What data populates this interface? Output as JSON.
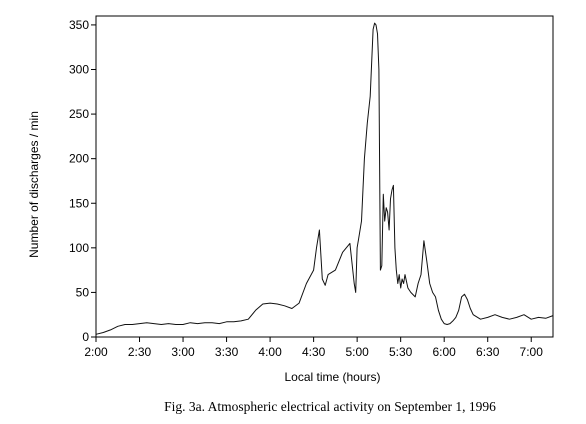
{
  "chart_data": {
    "type": "line",
    "caption": "Fig. 3a. Atmospheric electrical activity on September 1, 1996",
    "xlabel": "Local time (hours)",
    "ylabel": "Number of discharges / min",
    "x_axis": {
      "unit": "local time",
      "start": "2:00",
      "end": "7:15",
      "ticks": [
        "2:00",
        "2:30",
        "3:00",
        "3:30",
        "4:00",
        "4:30",
        "5:00",
        "5:30",
        "6:00",
        "6:30",
        "7:00"
      ]
    },
    "y_axis": {
      "range": [
        0,
        360
      ],
      "ticks": [
        0,
        50,
        100,
        150,
        200,
        250,
        300,
        350
      ]
    },
    "grid": false,
    "legend": "none",
    "line_color": "#111111",
    "series": [
      {
        "x": [
          "2:00",
          "2:05",
          "2:10",
          "2:15",
          "2:20",
          "2:25",
          "2:30",
          "2:35",
          "2:40",
          "2:45",
          "2:50",
          "2:55",
          "3:00",
          "3:05",
          "3:10",
          "3:15",
          "3:20",
          "3:25",
          "3:30",
          "3:35",
          "3:40",
          "3:45",
          "3:50",
          "3:55",
          "4:00",
          "4:05",
          "4:10",
          "4:15",
          "4:20",
          "4:25",
          "4:30",
          "4:32",
          "4:34",
          "4:36",
          "4:38",
          "4:40",
          "4:45",
          "4:50",
          "4:55",
          "4:58",
          "4:59",
          "5:00",
          "5:01",
          "5:03",
          "5:05",
          "5:07",
          "5:09",
          "5:11",
          "5:12",
          "5:13",
          "5:14",
          "5:15",
          "5:16",
          "5:17",
          "5:18",
          "5:19",
          "5:20",
          "5:21",
          "5:22",
          "5:23",
          "5:24",
          "5:25",
          "5:26",
          "5:27",
          "5:28",
          "5:29",
          "5:30",
          "5:31",
          "5:32",
          "5:33",
          "5:35",
          "5:37",
          "5:40",
          "5:42",
          "5:44",
          "5:46",
          "5:48",
          "5:50",
          "5:52",
          "5:54",
          "5:56",
          "5:58",
          "6:00",
          "6:02",
          "6:04",
          "6:06",
          "6:08",
          "6:10",
          "6:12",
          "6:14",
          "6:16",
          "6:18",
          "6:20",
          "6:25",
          "6:30",
          "6:35",
          "6:40",
          "6:45",
          "6:50",
          "6:55",
          "7:00",
          "7:05",
          "7:10",
          "7:15"
        ],
        "y": [
          3,
          5,
          8,
          12,
          14,
          14,
          15,
          16,
          15,
          14,
          15,
          14,
          14,
          16,
          15,
          16,
          16,
          15,
          17,
          17,
          18,
          20,
          30,
          37,
          38,
          37,
          35,
          32,
          38,
          60,
          75,
          100,
          120,
          65,
          58,
          70,
          75,
          95,
          105,
          60,
          50,
          100,
          110,
          130,
          200,
          240,
          270,
          345,
          352,
          350,
          340,
          300,
          75,
          80,
          160,
          130,
          145,
          140,
          120,
          155,
          165,
          170,
          100,
          75,
          60,
          70,
          55,
          65,
          60,
          70,
          55,
          50,
          45,
          60,
          70,
          108,
          85,
          60,
          50,
          45,
          30,
          20,
          15,
          14,
          15,
          18,
          22,
          30,
          45,
          48,
          42,
          32,
          25,
          20,
          22,
          25,
          22,
          20,
          22,
          25,
          20,
          22,
          21,
          24
        ]
      }
    ]
  }
}
